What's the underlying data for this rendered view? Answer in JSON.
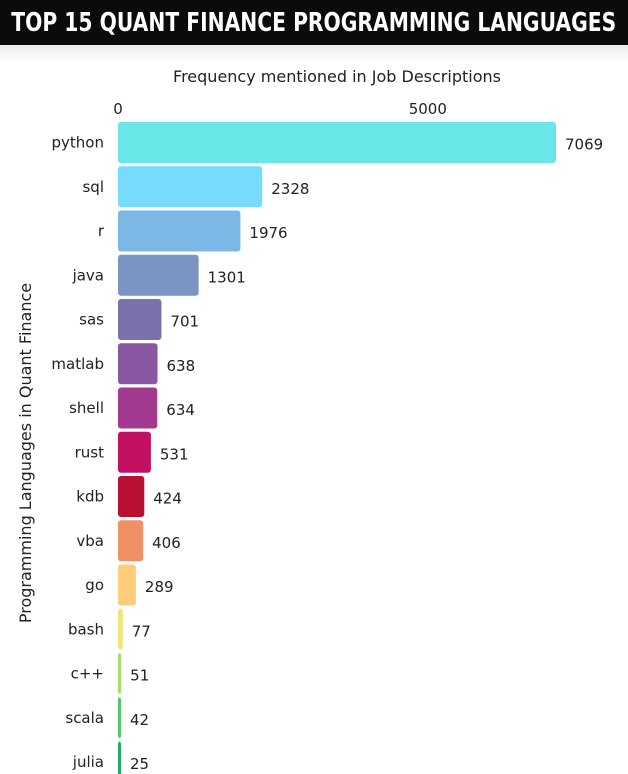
{
  "header": {
    "title": "TOP 15 QUANT FINANCE PROGRAMMING LANGUAGES"
  },
  "chart_data": {
    "type": "bar",
    "orientation": "horizontal",
    "title": "TOP 15 QUANT FINANCE PROGRAMMING LANGUAGES",
    "xlabel": "Frequency mentioned in Job Descriptions",
    "ylabel": "Programming Languages in Quant Finance",
    "x_axis_position": "top",
    "x_ticks": [
      0,
      5000
    ],
    "xlim": [
      0,
      7069
    ],
    "grid": false,
    "categories": [
      "python",
      "sql",
      "r",
      "java",
      "sas",
      "matlab",
      "shell",
      "rust",
      "kdb",
      "vba",
      "go",
      "bash",
      "c++",
      "scala",
      "julia"
    ],
    "values": [
      7069,
      2328,
      1976,
      1301,
      701,
      638,
      634,
      531,
      424,
      406,
      289,
      77,
      51,
      42,
      25
    ],
    "colors": [
      "#68e6e8",
      "#77dcfb",
      "#7cb8e6",
      "#7a94c4",
      "#7b72ad",
      "#8a58a3",
      "#a23b90",
      "#c21063",
      "#b80f33",
      "#ee9165",
      "#fdcd7c",
      "#ede574",
      "#a8de6b",
      "#50c86a",
      "#1cae62"
    ]
  }
}
